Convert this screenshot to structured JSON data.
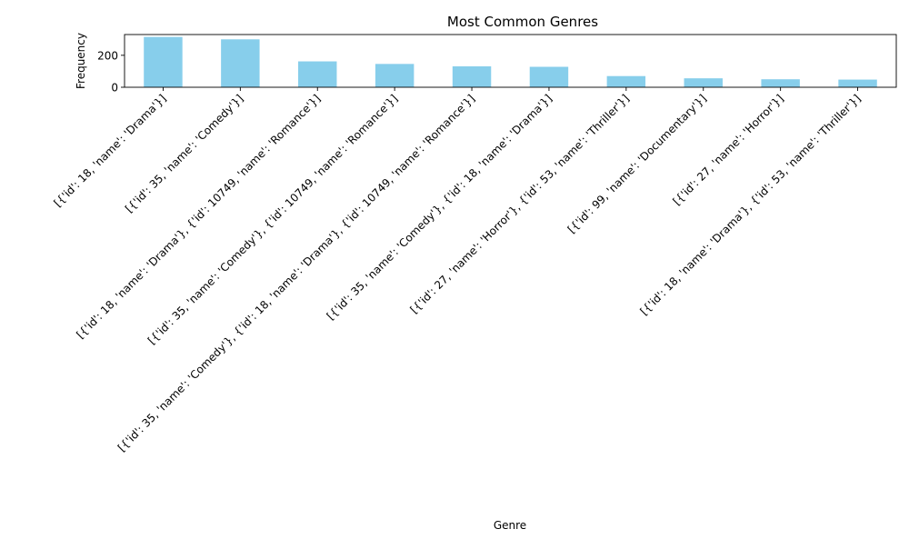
{
  "chart_data": {
    "type": "bar",
    "title": "Most Common Genres",
    "xlabel": "Genre",
    "ylabel": "Frequency",
    "ylim": [
      0,
      330
    ],
    "yticks": [
      0,
      200
    ],
    "grid": false,
    "bar_color": "#87CEEB",
    "categories": [
      "[{'id': 18, 'name': 'Drama'}]",
      "[{'id': 35, 'name': 'Comedy'}]",
      "[{'id': 18, 'name': 'Drama'}, {'id': 10749, 'name': 'Romance'}]",
      "[{'id': 35, 'name': 'Comedy'}, {'id': 10749, 'name': 'Romance'}]",
      "[{'id': 35, 'name': 'Comedy'}, {'id': 18, 'name': 'Drama'}, {'id': 10749, 'name': 'Romance'}]",
      "[{'id': 35, 'name': 'Comedy'}, {'id': 18, 'name': 'Drama'}]",
      "[{'id': 27, 'name': 'Horror'}, {'id': 53, 'name': 'Thriller'}]",
      "[{'id': 99, 'name': 'Documentary'}]",
      "[{'id': 27, 'name': 'Horror'}]",
      "[{'id': 18, 'name': 'Drama'}, {'id': 53, 'name': 'Thriller'}]"
    ],
    "values": [
      315,
      300,
      162,
      146,
      131,
      128,
      70,
      56,
      50,
      48
    ]
  }
}
